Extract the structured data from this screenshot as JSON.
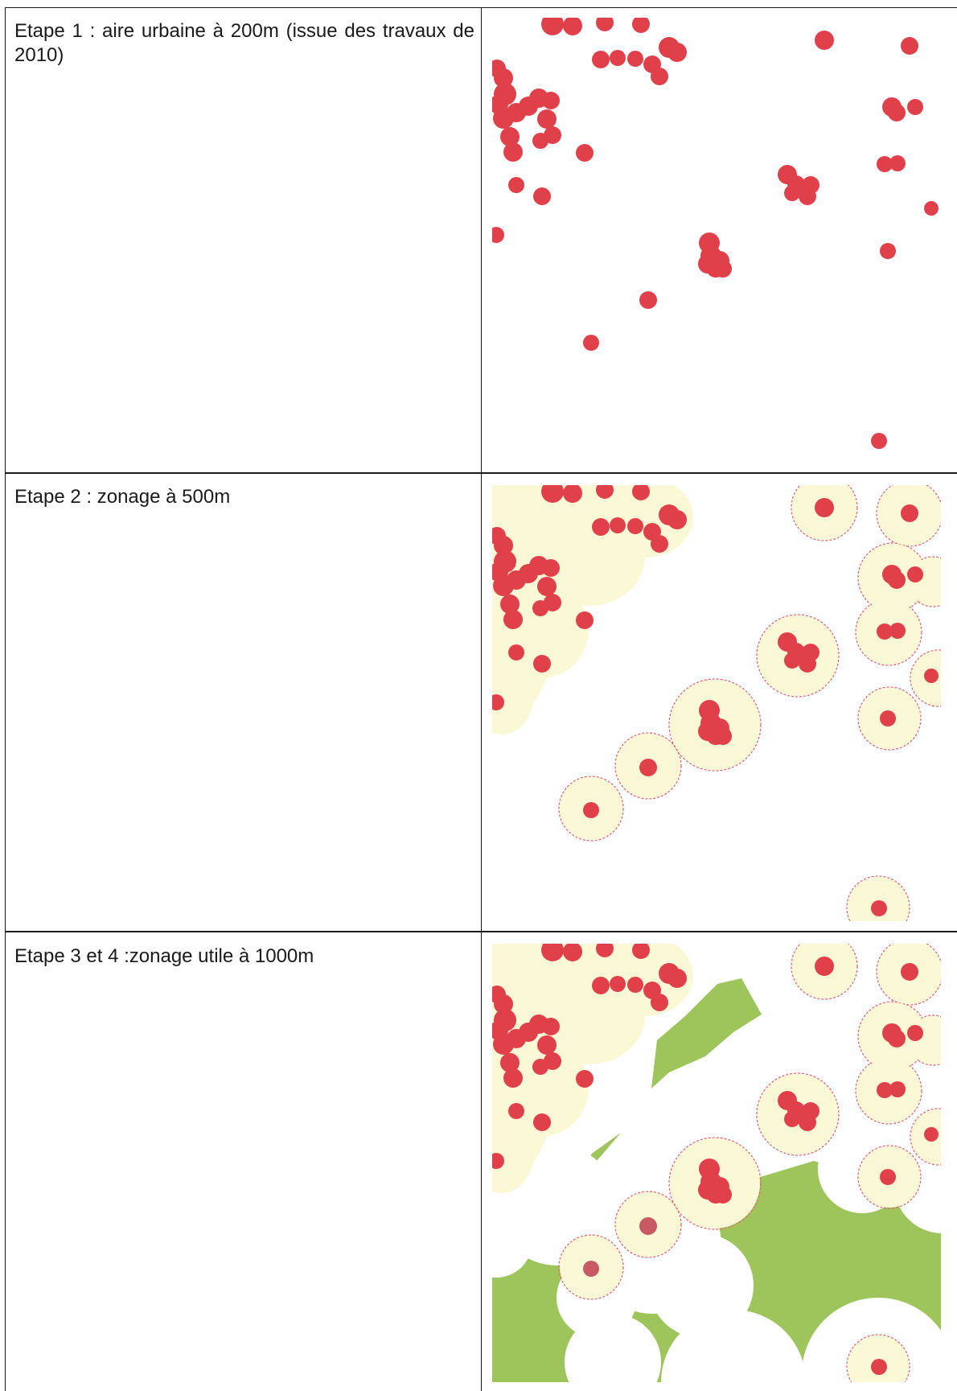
{
  "document": {
    "rows": [
      {
        "label": "Etape 1 : aire urbaine à 200m (issue des travaux de 2010)",
        "map": "urban-areas-200m"
      },
      {
        "label": "Etape 2 : zonage à 500m",
        "map": "zoning-500m"
      },
      {
        "label": "Etape 3 et 4  :zonage utile à 1000m",
        "map": "useful-zoning-1000m"
      }
    ]
  },
  "colors": {
    "urban": "#e0404a",
    "urban_faded": "#c85a63",
    "buffer_fill": "#fbf8d6",
    "buffer_outline": "#e06a6a",
    "useful_zone": "#9dc55c",
    "grid": "#1a1a1a",
    "text": "#1a1a1a"
  }
}
